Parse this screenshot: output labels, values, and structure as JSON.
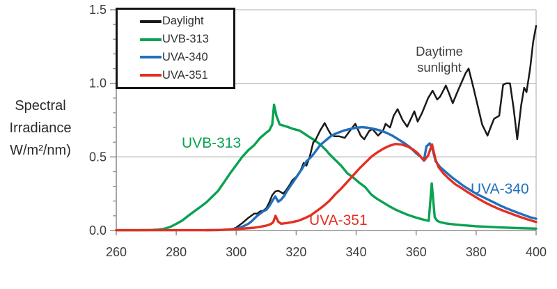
{
  "figure": {
    "ylabel_lines": [
      "Spectral",
      "Irradiance",
      "W/m²/nm)"
    ]
  },
  "legend": {
    "items": [
      {
        "label": "Daylight",
        "color": "#1a1a1a"
      },
      {
        "label": "UVB-313",
        "color": "#09a251"
      },
      {
        "label": "UVA-340",
        "color": "#2170bd"
      },
      {
        "label": "UVA-351",
        "color": "#e42e22"
      }
    ]
  },
  "annotations": {
    "uvb": {
      "text": "UVB-313",
      "color": "#09a251"
    },
    "uva340": {
      "text": "UVA-340",
      "color": "#2170bd"
    },
    "uva351": {
      "text": "UVA-351",
      "color": "#e42e22"
    },
    "daylight": {
      "text": "Daytime\nsunlight",
      "color": "#3f3f3f"
    }
  },
  "chart_data": {
    "type": "line",
    "title": "",
    "xlabel": "",
    "ylabel": "Spectral Irradiance W/m²/nm)",
    "xlim": [
      260,
      400
    ],
    "ylim": [
      0,
      1.5
    ],
    "x_ticks": [
      260,
      280,
      300,
      320,
      340,
      360,
      380,
      400
    ],
    "y_ticks": [
      0.0,
      0.5,
      1.0,
      1.5
    ],
    "y_minor_step": 0.1,
    "grid": "horizontal gridlines at 0.5, 1.0, 1.5; right border",
    "legend_position": "top-left",
    "series": [
      {
        "name": "Daylight",
        "color": "#1a1a1a",
        "points": [
          [
            297,
            0.005
          ],
          [
            299,
            0.012
          ],
          [
            300,
            0.02
          ],
          [
            302,
            0.05
          ],
          [
            304,
            0.085
          ],
          [
            305,
            0.1
          ],
          [
            306,
            0.115
          ],
          [
            307,
            0.115
          ],
          [
            308,
            0.13
          ],
          [
            309,
            0.135
          ],
          [
            310,
            0.15
          ],
          [
            311,
            0.19
          ],
          [
            312,
            0.24
          ],
          [
            313,
            0.265
          ],
          [
            314,
            0.27
          ],
          [
            315,
            0.26
          ],
          [
            315.6,
            0.25
          ],
          [
            316.5,
            0.27
          ],
          [
            317.5,
            0.3
          ],
          [
            318.7,
            0.34
          ],
          [
            320,
            0.365
          ],
          [
            321.5,
            0.41
          ],
          [
            322.5,
            0.46
          ],
          [
            323.4,
            0.44
          ],
          [
            324.5,
            0.5
          ],
          [
            325.7,
            0.6
          ],
          [
            326.3,
            0.61
          ],
          [
            328,
            0.68
          ],
          [
            329.5,
            0.73
          ],
          [
            330.5,
            0.69
          ],
          [
            331.5,
            0.655
          ],
          [
            332.7,
            0.64
          ],
          [
            334.3,
            0.64
          ],
          [
            336.2,
            0.63
          ],
          [
            338,
            0.68
          ],
          [
            339.7,
            0.725
          ],
          [
            341.5,
            0.645
          ],
          [
            342.7,
            0.62
          ],
          [
            344.3,
            0.675
          ],
          [
            345.4,
            0.69
          ],
          [
            347.3,
            0.645
          ],
          [
            349,
            0.68
          ],
          [
            349.8,
            0.725
          ],
          [
            351.3,
            0.7
          ],
          [
            352.5,
            0.78
          ],
          [
            353.8,
            0.825
          ],
          [
            355.5,
            0.75
          ],
          [
            357,
            0.705
          ],
          [
            358.5,
            0.77
          ],
          [
            359.4,
            0.81
          ],
          [
            360.5,
            0.74
          ],
          [
            362,
            0.8
          ],
          [
            364,
            0.9
          ],
          [
            365.5,
            0.95
          ],
          [
            367,
            0.89
          ],
          [
            368,
            0.91
          ],
          [
            369.9,
            0.985
          ],
          [
            371,
            0.93
          ],
          [
            372.2,
            0.865
          ],
          [
            373.5,
            0.93
          ],
          [
            375,
            1.0
          ],
          [
            376.5,
            1.07
          ],
          [
            377.5,
            1.1
          ],
          [
            379,
            0.98
          ],
          [
            380.5,
            0.85
          ],
          [
            382,
            0.72
          ],
          [
            383.8,
            0.645
          ],
          [
            385,
            0.71
          ],
          [
            386,
            0.76
          ],
          [
            387.7,
            0.78
          ],
          [
            389,
            0.99
          ],
          [
            390,
            1.0
          ],
          [
            391.3,
            1.0
          ],
          [
            392.5,
            0.83
          ],
          [
            393.7,
            0.62
          ],
          [
            395,
            0.85
          ],
          [
            396,
            0.97
          ],
          [
            396.8,
            0.94
          ],
          [
            398,
            1.1
          ],
          [
            399,
            1.28
          ],
          [
            400,
            1.39
          ]
        ]
      },
      {
        "name": "UVB-313",
        "color": "#09a251",
        "points": [
          [
            260,
            0.002
          ],
          [
            268,
            0.002
          ],
          [
            272,
            0.004
          ],
          [
            274,
            0.006
          ],
          [
            276,
            0.012
          ],
          [
            278,
            0.024
          ],
          [
            280,
            0.045
          ],
          [
            282,
            0.068
          ],
          [
            284,
            0.1
          ],
          [
            286,
            0.13
          ],
          [
            288,
            0.16
          ],
          [
            290,
            0.19
          ],
          [
            292,
            0.23
          ],
          [
            294,
            0.27
          ],
          [
            296,
            0.33
          ],
          [
            298,
            0.39
          ],
          [
            300,
            0.445
          ],
          [
            302,
            0.5
          ],
          [
            304,
            0.545
          ],
          [
            306,
            0.58
          ],
          [
            308,
            0.63
          ],
          [
            310,
            0.665
          ],
          [
            311,
            0.68
          ],
          [
            312,
            0.72
          ],
          [
            312.6,
            0.855
          ],
          [
            313.4,
            0.78
          ],
          [
            314.5,
            0.72
          ],
          [
            317,
            0.705
          ],
          [
            319,
            0.69
          ],
          [
            321,
            0.68
          ],
          [
            322,
            0.668
          ],
          [
            324,
            0.64
          ],
          [
            326,
            0.615
          ],
          [
            328,
            0.585
          ],
          [
            330,
            0.545
          ],
          [
            331,
            0.52
          ],
          [
            333,
            0.48
          ],
          [
            335,
            0.44
          ],
          [
            337,
            0.39
          ],
          [
            339,
            0.36
          ],
          [
            341,
            0.325
          ],
          [
            343,
            0.295
          ],
          [
            345,
            0.245
          ],
          [
            347,
            0.215
          ],
          [
            349,
            0.19
          ],
          [
            351,
            0.165
          ],
          [
            353,
            0.143
          ],
          [
            355,
            0.125
          ],
          [
            357,
            0.108
          ],
          [
            359,
            0.094
          ],
          [
            361,
            0.082
          ],
          [
            363,
            0.071
          ],
          [
            364.2,
            0.066
          ],
          [
            365.2,
            0.32
          ],
          [
            366.2,
            0.09
          ],
          [
            367,
            0.066
          ],
          [
            368,
            0.057
          ],
          [
            370,
            0.048
          ],
          [
            372,
            0.043
          ],
          [
            374,
            0.039
          ],
          [
            376,
            0.035
          ],
          [
            378,
            0.032
          ],
          [
            380,
            0.029
          ],
          [
            384,
            0.025
          ],
          [
            388,
            0.021
          ],
          [
            392,
            0.018
          ],
          [
            396,
            0.015
          ],
          [
            400,
            0.013
          ]
        ]
      },
      {
        "name": "UVA-340",
        "color": "#2170bd",
        "points": [
          [
            290,
            0.002
          ],
          [
            294,
            0.003
          ],
          [
            296,
            0.005
          ],
          [
            298,
            0.008
          ],
          [
            300,
            0.013
          ],
          [
            302,
            0.025
          ],
          [
            304,
            0.045
          ],
          [
            305,
            0.06
          ],
          [
            307,
            0.1
          ],
          [
            309,
            0.13
          ],
          [
            310,
            0.14
          ],
          [
            311,
            0.165
          ],
          [
            312,
            0.2
          ],
          [
            313,
            0.232
          ],
          [
            314,
            0.196
          ],
          [
            315,
            0.21
          ],
          [
            316,
            0.235
          ],
          [
            317,
            0.27
          ],
          [
            318,
            0.3
          ],
          [
            319,
            0.33
          ],
          [
            320,
            0.36
          ],
          [
            321,
            0.39
          ],
          [
            322,
            0.42
          ],
          [
            323.4,
            0.47
          ],
          [
            325,
            0.5
          ],
          [
            326,
            0.525
          ],
          [
            328,
            0.58
          ],
          [
            330,
            0.615
          ],
          [
            332,
            0.648
          ],
          [
            334,
            0.665
          ],
          [
            336,
            0.68
          ],
          [
            338,
            0.69
          ],
          [
            340,
            0.698
          ],
          [
            342,
            0.702
          ],
          [
            344,
            0.698
          ],
          [
            346,
            0.69
          ],
          [
            348,
            0.68
          ],
          [
            350,
            0.665
          ],
          [
            352,
            0.645
          ],
          [
            354,
            0.62
          ],
          [
            356,
            0.595
          ],
          [
            358,
            0.565
          ],
          [
            360,
            0.525
          ],
          [
            361.5,
            0.5
          ],
          [
            362.6,
            0.475
          ],
          [
            363.4,
            0.57
          ],
          [
            364.5,
            0.592
          ],
          [
            365.5,
            0.55
          ],
          [
            366.5,
            0.47
          ],
          [
            368,
            0.43
          ],
          [
            370,
            0.395
          ],
          [
            372,
            0.36
          ],
          [
            374,
            0.33
          ],
          [
            376,
            0.3
          ],
          [
            378,
            0.275
          ],
          [
            380,
            0.25
          ],
          [
            382,
            0.23
          ],
          [
            384,
            0.21
          ],
          [
            386,
            0.19
          ],
          [
            388,
            0.17
          ],
          [
            390,
            0.152
          ],
          [
            392,
            0.136
          ],
          [
            394,
            0.12
          ],
          [
            396,
            0.105
          ],
          [
            398,
            0.09
          ],
          [
            400,
            0.08
          ]
        ]
      },
      {
        "name": "UVA-351",
        "color": "#e42e22",
        "points": [
          [
            260,
            0.002
          ],
          [
            290,
            0.002
          ],
          [
            295,
            0.004
          ],
          [
            300,
            0.009
          ],
          [
            303,
            0.014
          ],
          [
            306,
            0.019
          ],
          [
            308,
            0.025
          ],
          [
            310,
            0.033
          ],
          [
            311.5,
            0.043
          ],
          [
            312.3,
            0.056
          ],
          [
            313.1,
            0.1
          ],
          [
            314,
            0.06
          ],
          [
            315,
            0.046
          ],
          [
            317,
            0.051
          ],
          [
            319,
            0.058
          ],
          [
            321,
            0.068
          ],
          [
            323,
            0.085
          ],
          [
            325,
            0.105
          ],
          [
            327,
            0.135
          ],
          [
            329,
            0.165
          ],
          [
            331,
            0.2
          ],
          [
            333,
            0.245
          ],
          [
            335,
            0.285
          ],
          [
            337,
            0.33
          ],
          [
            339,
            0.375
          ],
          [
            341,
            0.42
          ],
          [
            343,
            0.46
          ],
          [
            345,
            0.5
          ],
          [
            347,
            0.53
          ],
          [
            349,
            0.555
          ],
          [
            351,
            0.575
          ],
          [
            353,
            0.588
          ],
          [
            355,
            0.585
          ],
          [
            357,
            0.572
          ],
          [
            359,
            0.55
          ],
          [
            360.5,
            0.525
          ],
          [
            362,
            0.49
          ],
          [
            362.8,
            0.478
          ],
          [
            364,
            0.51
          ],
          [
            365.3,
            0.585
          ],
          [
            366.5,
            0.48
          ],
          [
            367.5,
            0.43
          ],
          [
            369,
            0.39
          ],
          [
            371,
            0.35
          ],
          [
            373,
            0.315
          ],
          [
            375,
            0.29
          ],
          [
            377,
            0.263
          ],
          [
            379,
            0.238
          ],
          [
            381,
            0.213
          ],
          [
            383,
            0.19
          ],
          [
            385,
            0.17
          ],
          [
            387,
            0.152
          ],
          [
            389,
            0.135
          ],
          [
            391,
            0.12
          ],
          [
            393,
            0.104
          ],
          [
            395,
            0.09
          ],
          [
            397,
            0.076
          ],
          [
            400,
            0.058
          ]
        ]
      }
    ]
  }
}
